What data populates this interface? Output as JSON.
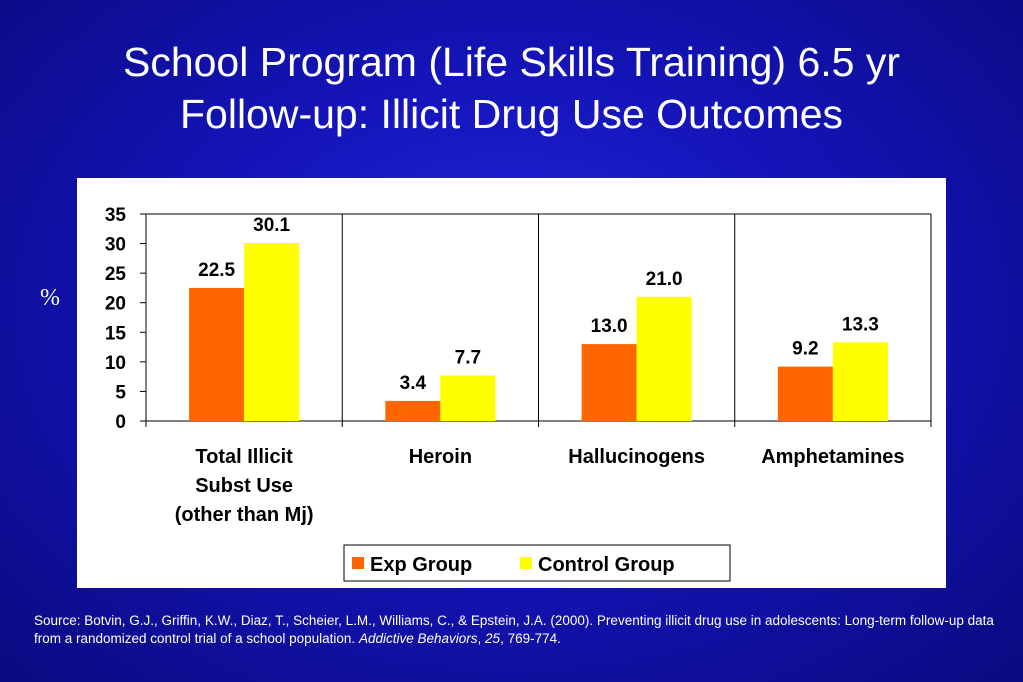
{
  "slide": {
    "title_line1": "School Program (Life Skills Training) 6.5 yr",
    "title_line2": "Follow-up: Illicit Drug Use Outcomes",
    "y_unit": "%",
    "source_prefix": "Source: Botvin, G.J., Griffin, K.W., Diaz, T., Scheier, L.M., Williams, C., & Epstein, J.A. (2000). Preventing illicit drug use in adolescents: Long-term follow-up data from a randomized control trial of a school population.",
    "source_journal": "Addictive Behaviors",
    "source_sep": ", ",
    "source_volume": "25",
    "source_pages": ", 769-774."
  },
  "chart_data": {
    "type": "bar",
    "categories": [
      [
        "Total Illicit",
        "Subst Use",
        "(other than Mj)"
      ],
      [
        "Heroin"
      ],
      [
        "Hallucinogens"
      ],
      [
        "Amphetamines"
      ]
    ],
    "series": [
      {
        "name": "Exp Group",
        "values": [
          22.5,
          3.4,
          13.0,
          9.2
        ],
        "labels": [
          "22.5",
          "3.4",
          "13.0",
          "9.2"
        ],
        "color": "#ff6600"
      },
      {
        "name": "Control Group",
        "values": [
          30.1,
          7.7,
          21.0,
          13.3
        ],
        "labels": [
          "30.1",
          "7.7",
          "21.0",
          "13.3"
        ],
        "color": "#ffff00"
      }
    ],
    "ylim": [
      0,
      35
    ],
    "yticks": [
      "0",
      "5",
      "10",
      "15",
      "20",
      "25",
      "30",
      "35"
    ],
    "ytick_values": [
      0,
      5,
      10,
      15,
      20,
      25,
      30,
      35
    ],
    "grid": "vertical category separators",
    "legend_position": "bottom"
  }
}
